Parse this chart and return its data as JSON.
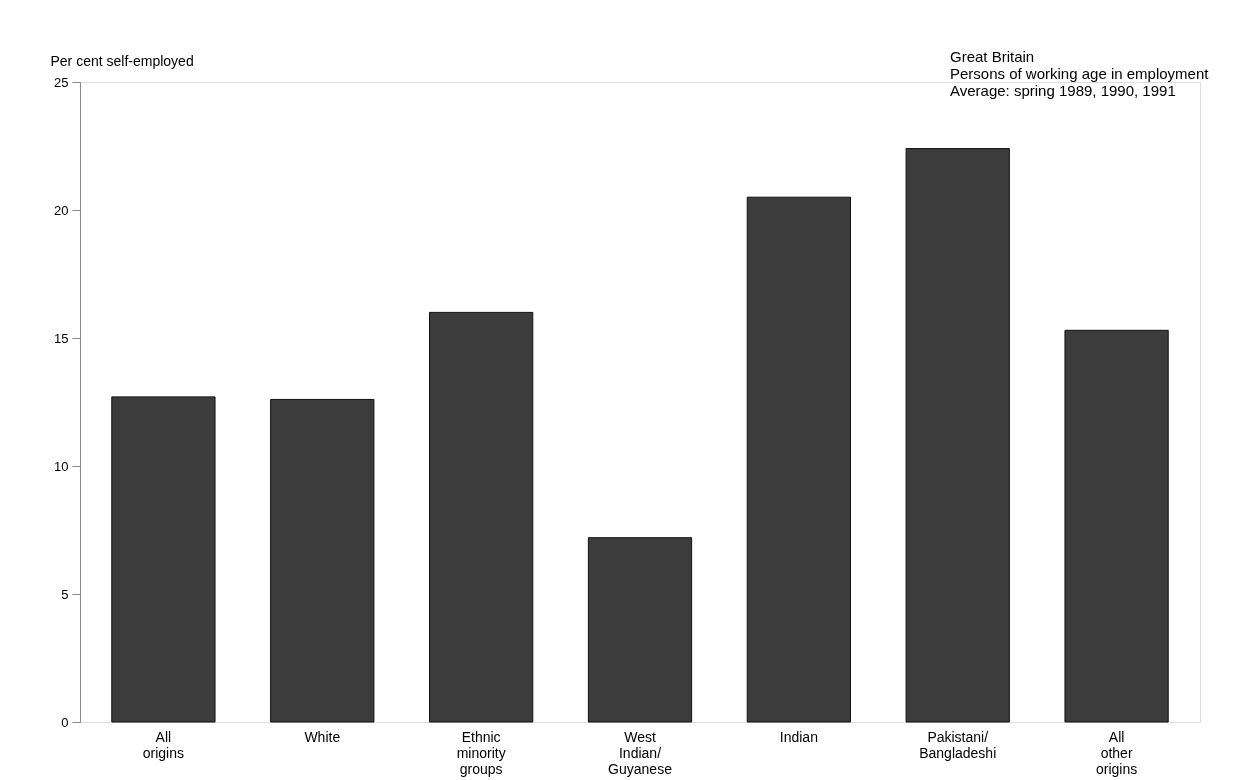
{
  "chart_data": {
    "type": "bar",
    "ylabel": "Per cent self-employed",
    "categories": [
      "All origins",
      "White",
      "Ethnic minority groups",
      "West Indian/ Guyanese",
      "Indian",
      "Pakistani/ Bangladeshi",
      "All other origins"
    ],
    "values": [
      12.7,
      12.6,
      16.0,
      7.2,
      20.5,
      22.4,
      15.3
    ],
    "color": "#3c3c3c",
    "ylim": [
      0,
      25
    ],
    "yticks": [
      0,
      5,
      10,
      15,
      20,
      25
    ],
    "grid": false,
    "annotations": [
      "Great Britain",
      "Persons of working age in employment",
      "Average: spring 1989, 1990, 1991"
    ]
  }
}
